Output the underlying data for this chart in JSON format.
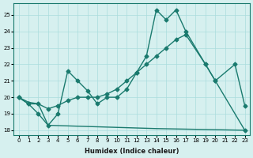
{
  "background_color": "#d6f0ef",
  "grid_color": "#aadddd",
  "line_color": "#1a7a6e",
  "xlabel": "Humidex (Indice chaleur)",
  "xlim": [
    -0.5,
    23.5
  ],
  "ylim": [
    17.7,
    25.7
  ],
  "yticks": [
    18,
    19,
    20,
    21,
    22,
    23,
    24,
    25
  ],
  "xticks": [
    0,
    1,
    2,
    3,
    4,
    5,
    6,
    7,
    8,
    9,
    10,
    11,
    12,
    13,
    14,
    15,
    16,
    17,
    18,
    19,
    20,
    21,
    22,
    23
  ],
  "line1_x": [
    0,
    1,
    2,
    3,
    4,
    5,
    6,
    7,
    8,
    9,
    10,
    11,
    12,
    13,
    14,
    15,
    16,
    17,
    19,
    20,
    23
  ],
  "line1_y": [
    20.0,
    19.6,
    19.0,
    18.3,
    19.0,
    21.6,
    21.0,
    20.4,
    19.6,
    20.0,
    20.0,
    20.5,
    21.5,
    22.5,
    25.3,
    24.7,
    25.3,
    24.0,
    22.0,
    21.0,
    18.0
  ],
  "line2_x": [
    0,
    1,
    2,
    3,
    4,
    5,
    6,
    7,
    8,
    9,
    10,
    11,
    12,
    13,
    14,
    15,
    16,
    17,
    19,
    20,
    22,
    23
  ],
  "line2_y": [
    20.0,
    19.6,
    19.6,
    19.3,
    19.5,
    19.8,
    20.0,
    20.0,
    20.0,
    20.2,
    20.5,
    21.0,
    21.5,
    22.0,
    22.5,
    23.0,
    23.5,
    23.8,
    22.0,
    21.0,
    22.0,
    19.5
  ],
  "line3_x": [
    0,
    1,
    2,
    3,
    14,
    23
  ],
  "line3_y": [
    20.0,
    19.7,
    19.6,
    18.3,
    18.1,
    18.0
  ]
}
